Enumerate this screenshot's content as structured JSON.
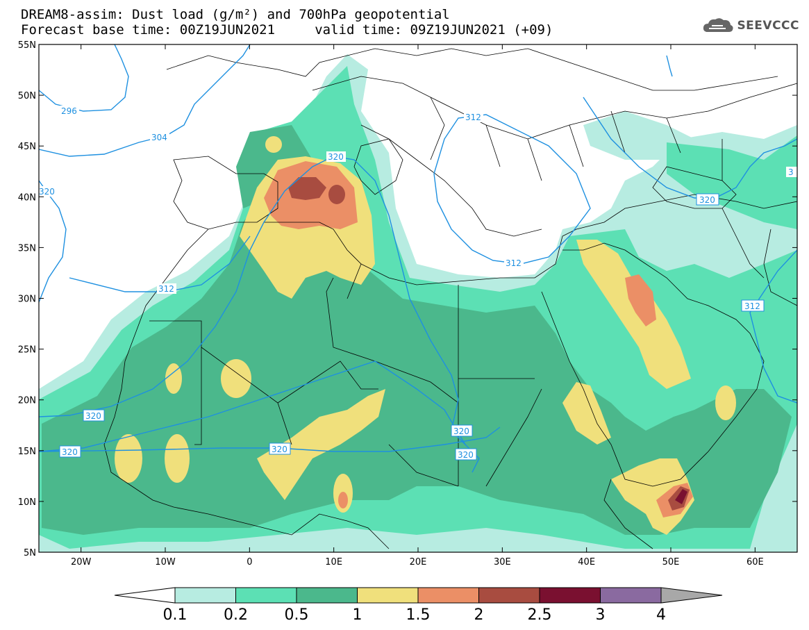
{
  "title_line1": "DREAM8-assim: Dust load (g/m²) and 700hPa geopotential",
  "title_line2": "Forecast base time: 00Z19JUN2021     valid time: 09Z19JUN2021 (+09)",
  "logo_text": "SEEVCCC",
  "lat_labels": [
    "55N",
    "50N",
    "45N",
    "40N",
    "35N",
    "30N",
    "25N",
    "20N",
    "15N",
    "10N",
    "5N"
  ],
  "lon_labels": [
    "20W",
    "10W",
    "0",
    "10E",
    "20E",
    "30E",
    "40E",
    "50E",
    "60E"
  ],
  "map_extent": {
    "lon_min": -25,
    "lon_max": 65,
    "lat_min": 5,
    "lat_max": 55
  },
  "contour_labels": [
    "296",
    "304",
    "320",
    "312",
    "312",
    "320",
    "320",
    "320",
    "312",
    "320",
    "320",
    "320",
    "320",
    "3"
  ],
  "colorbar": {
    "ticks": [
      "0.1",
      "0.2",
      "0.5",
      "1",
      "1.5",
      "2",
      "2.5",
      "3",
      "4"
    ],
    "colors": [
      "#b7ece1",
      "#5ce0b4",
      "#4bb88c",
      "#f0e07c",
      "#eb8f66",
      "#a84c40",
      "#7a1030",
      "#8a6aa0",
      "#a8a8a8"
    ]
  }
}
